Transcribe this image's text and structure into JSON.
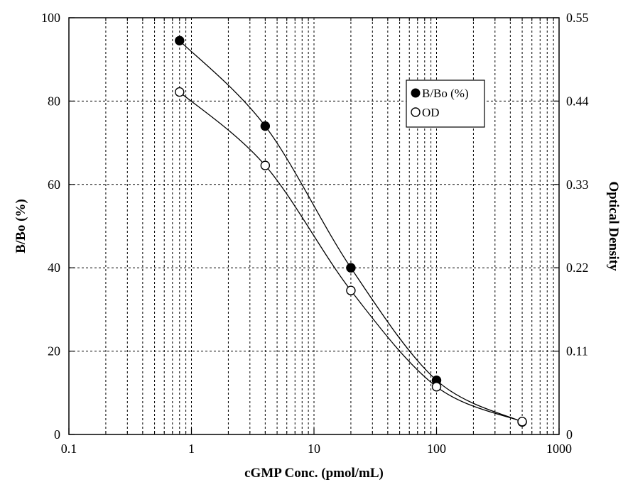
{
  "chart_data": {
    "type": "line",
    "xlabel": "cGMP Conc. (pmol/mL)",
    "ylabel": "B/Bo (%)",
    "y2label": "Optical Density",
    "xscale": "log",
    "xlim": [
      0.1,
      1000
    ],
    "ylim": [
      0,
      100
    ],
    "y2lim": [
      0,
      0.55
    ],
    "grid": true,
    "legend_position": "top-right",
    "xticks": [
      "0.1",
      "1",
      "10",
      "100",
      "1000"
    ],
    "yticks": [
      "0",
      "20",
      "40",
      "60",
      "80",
      "100"
    ],
    "y2ticks": [
      "0",
      "0.11",
      "0.22",
      "0.33",
      "0.44",
      "0.55"
    ],
    "series": [
      {
        "name": "B/Bo (%)",
        "marker": "filled-circle",
        "axis": "left",
        "x": [
          0.8,
          4,
          20,
          100,
          500
        ],
        "y": [
          94.5,
          74,
          40,
          13,
          3
        ]
      },
      {
        "name": "OD",
        "marker": "open-circle",
        "axis": "right",
        "x": [
          0.8,
          4,
          20,
          100,
          500
        ],
        "y": [
          0.452,
          0.355,
          0.19,
          0.063,
          0.017
        ]
      }
    ],
    "colors": {
      "line": "#000000",
      "grid": "#000000",
      "background": "#ffffff"
    }
  }
}
